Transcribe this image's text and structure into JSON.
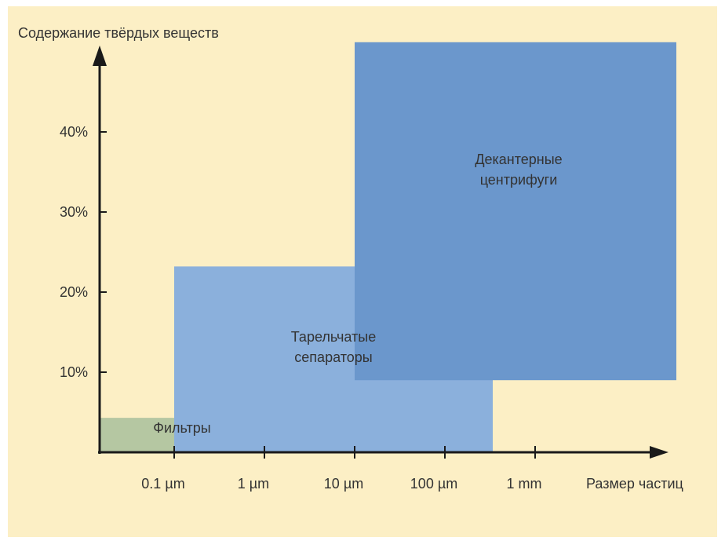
{
  "chart_data": {
    "type": "area",
    "title": "",
    "ylabel": "Содержание твёрдых веществ",
    "xlabel": "Размер частиц",
    "x_ticks": [
      "0.1 µm",
      "1 µm",
      "10 µm",
      "100 µm",
      "1 mm"
    ],
    "y_ticks": [
      "10%",
      "20%",
      "30%",
      "40%"
    ],
    "y_unit": "%",
    "ylim": [
      0,
      50
    ],
    "grid": false,
    "regions": [
      {
        "name": "Фильтры",
        "label_lines": [
          "Фильтры"
        ],
        "x_range": [
          "< 0.1 µm",
          "1 µm"
        ],
        "y_range": [
          0,
          4.3
        ],
        "color": "#b5c7a2"
      },
      {
        "name": "Тарельчатые сепараторы",
        "label_lines": [
          "Тарельчатые",
          "сепараторы"
        ],
        "x_range": [
          "0.1 µm",
          "~300 µm"
        ],
        "y_range": [
          0,
          23.2
        ],
        "color": "#8bb0dc"
      },
      {
        "name": "Декантерные центрифуги",
        "label_lines": [
          "Декантерные",
          "центрифуги"
        ],
        "x_range": [
          "10 µm",
          "> 1 mm"
        ],
        "y_range": [
          9,
          51.2
        ],
        "color": "#6b97cc"
      }
    ],
    "colors": {
      "background": "#fcefc5",
      "axis": "#1a1a1a",
      "text": "#333333"
    }
  }
}
